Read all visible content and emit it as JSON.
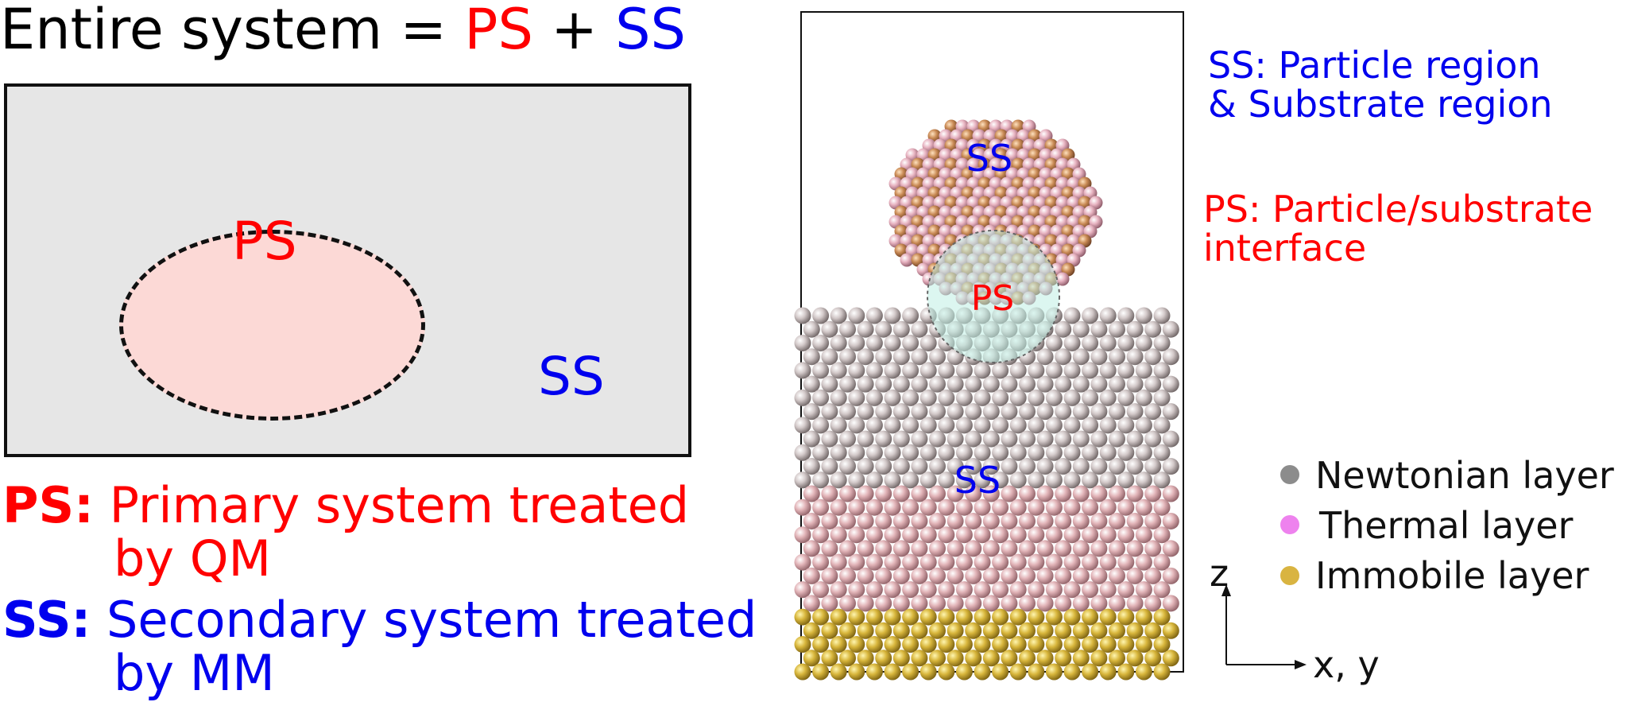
{
  "colors": {
    "ps": "#ff0000",
    "ss": "#0000ee",
    "newtonian": "#8c8c8c",
    "thermal": "#ee82ee",
    "immobile": "#d9b441"
  },
  "left": {
    "title_prefix": "Entire system = ",
    "title_ps": "PS",
    "title_plus": " + ",
    "title_ss": "SS",
    "box_ps": "PS",
    "box_ss": "SS",
    "def_ps_key": "PS:",
    "def_ps_line1": " Primary system treated",
    "def_ps_line2": "by QM",
    "def_ss_key": "SS:",
    "def_ss_line1": " Secondary system treated",
    "def_ss_line2": "by MM"
  },
  "right": {
    "ss_top": "SS",
    "ps_mid": "PS",
    "ss_bottom": "SS",
    "ss_note_line1": "SS: Particle region",
    "ss_note_line2": " & Substrate region",
    "ps_note_line1": "PS: Particle/substrate",
    "ps_note_line2": "interface",
    "axis_z": "z",
    "axis_xy": "x, y"
  },
  "legend": [
    {
      "label": "Newtonian layer",
      "icon": "gray-dot"
    },
    {
      "label": "Thermal layer",
      "icon": "violet-dot"
    },
    {
      "label": "Immobile layer",
      "icon": "gold-dot"
    }
  ]
}
